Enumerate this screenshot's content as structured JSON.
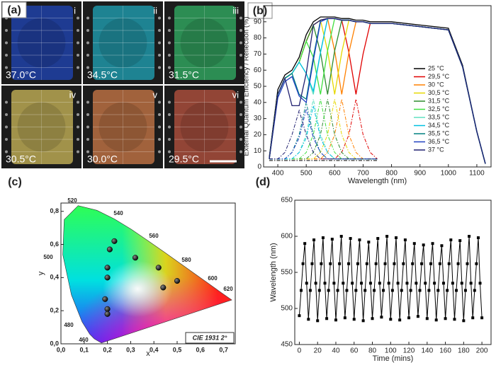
{
  "panel_a": {
    "label": "(a)",
    "photos": [
      {
        "numeral": "i",
        "temperature": "37.0°C",
        "color": "#1f3fa0"
      },
      {
        "numeral": "ii",
        "temperature": "34.5°C",
        "color": "#1f8fa0"
      },
      {
        "numeral": "iii",
        "temperature": "31.5°C",
        "color": "#2f9a5a"
      },
      {
        "numeral": "iv",
        "temperature": "30.5°C",
        "color": "#b0a050"
      },
      {
        "numeral": "v",
        "temperature": "30.0°C",
        "color": "#b06a40"
      },
      {
        "numeral": "vi",
        "temperature": "29.5°C",
        "color": "#a04a3a"
      }
    ]
  },
  "chart_data": [
    {
      "type": "line",
      "panel_label": "(b)",
      "x_label": "Wavelength (nm)",
      "y_label": "External Quantum Efficiency / Reflection (%)",
      "x": [
        370,
        400,
        425,
        450,
        475,
        500,
        525,
        550,
        575,
        600,
        625,
        650,
        675,
        700,
        725,
        750,
        800,
        900,
        1000,
        1050,
        1100,
        1130
      ],
      "xlim": [
        350,
        1150
      ],
      "xticks": [
        400,
        500,
        600,
        700,
        800,
        900,
        1000,
        1100
      ],
      "ylim": [
        0,
        100
      ],
      "yticks": [
        0,
        10,
        20,
        30,
        40,
        50,
        60,
        70,
        80,
        90,
        100
      ],
      "series": [
        {
          "name": "25 °C",
          "color": "#000000",
          "values": [
            6,
            48,
            57,
            60,
            68,
            82,
            90,
            93,
            93,
            93,
            92,
            92,
            91,
            91,
            90,
            90,
            90,
            88,
            86,
            63,
            22,
            2
          ],
          "reflection": [
            4,
            4,
            4,
            4,
            4,
            4,
            4,
            4,
            4,
            4,
            4,
            4,
            4,
            4,
            4,
            4,
            null,
            null,
            null,
            null,
            null,
            null
          ]
        },
        {
          "name": "29,5 °C",
          "color": "#e00000",
          "values": [
            5,
            45,
            55,
            58,
            65,
            78,
            88,
            91,
            92,
            92,
            91,
            71,
            45,
            70,
            89,
            89,
            89,
            87,
            85,
            62,
            22,
            2
          ],
          "reflection": [
            5,
            5,
            5,
            5,
            5,
            5,
            5,
            5,
            5,
            5,
            9,
            20,
            42,
            20,
            9,
            5,
            null,
            null,
            null,
            null,
            null,
            null
          ]
        },
        {
          "name": "30 °C",
          "color": "#ff8000",
          "values": [
            5,
            45,
            55,
            58,
            65,
            78,
            88,
            91,
            92,
            72,
            45,
            71,
            90,
            90,
            89,
            89,
            89,
            87,
            85,
            62,
            22,
            2
          ],
          "reflection": [
            5,
            5,
            5,
            5,
            5,
            5,
            5,
            5,
            9,
            20,
            42,
            20,
            9,
            5,
            5,
            5,
            null,
            null,
            null,
            null,
            null,
            null
          ]
        },
        {
          "name": "30,5 °C",
          "color": "#e6d800",
          "values": [
            5,
            45,
            55,
            58,
            65,
            78,
            88,
            91,
            72,
            45,
            71,
            91,
            90,
            90,
            89,
            89,
            89,
            87,
            85,
            62,
            22,
            2
          ],
          "reflection": [
            5,
            5,
            5,
            5,
            5,
            5,
            5,
            9,
            20,
            42,
            20,
            9,
            5,
            5,
            5,
            5,
            null,
            null,
            null,
            null,
            null,
            null
          ]
        },
        {
          "name": "31,5 °C",
          "color": "#2e8b2e",
          "values": [
            5,
            45,
            55,
            58,
            65,
            78,
            88,
            71,
            45,
            72,
            91,
            91,
            90,
            90,
            89,
            89,
            89,
            87,
            85,
            62,
            22,
            2
          ],
          "reflection": [
            5,
            5,
            5,
            5,
            5,
            5,
            9,
            20,
            42,
            20,
            9,
            5,
            5,
            5,
            5,
            5,
            null,
            null,
            null,
            null,
            null,
            null
          ]
        },
        {
          "name": "32,5 °C",
          "color": "#40e040",
          "values": [
            5,
            45,
            55,
            58,
            65,
            78,
            68,
            45,
            72,
            92,
            91,
            91,
            90,
            90,
            89,
            89,
            89,
            87,
            85,
            62,
            22,
            2
          ],
          "reflection": [
            5,
            5,
            5,
            5,
            5,
            9,
            20,
            42,
            20,
            9,
            5,
            5,
            5,
            5,
            5,
            5,
            null,
            null,
            null,
            null,
            null,
            null
          ]
        },
        {
          "name": "33,5 °C",
          "color": "#60e0c0",
          "values": [
            5,
            45,
            55,
            58,
            65,
            58,
            45,
            71,
            92,
            92,
            91,
            91,
            90,
            90,
            89,
            89,
            89,
            87,
            85,
            62,
            22,
            2
          ],
          "reflection": [
            5,
            5,
            5,
            5,
            9,
            20,
            42,
            20,
            9,
            5,
            5,
            5,
            5,
            5,
            5,
            5,
            null,
            null,
            null,
            null,
            null,
            null
          ]
        },
        {
          "name": "34,5 °C",
          "color": "#00c0e0",
          "values": [
            5,
            45,
            55,
            58,
            65,
            58,
            47,
            71,
            92,
            92,
            91,
            91,
            90,
            90,
            89,
            89,
            89,
            87,
            85,
            62,
            22,
            2
          ],
          "reflection": [
            5,
            5,
            5,
            5,
            9,
            18,
            38,
            18,
            9,
            5,
            5,
            5,
            5,
            5,
            5,
            5,
            null,
            null,
            null,
            null,
            null,
            null
          ]
        },
        {
          "name": "35,5 °C",
          "color": "#008080",
          "values": [
            5,
            45,
            55,
            58,
            45,
            42,
            68,
            91,
            92,
            92,
            91,
            91,
            90,
            90,
            89,
            89,
            89,
            87,
            85,
            62,
            22,
            2
          ],
          "reflection": [
            5,
            5,
            5,
            9,
            20,
            40,
            20,
            9,
            5,
            5,
            5,
            5,
            5,
            5,
            5,
            5,
            null,
            null,
            null,
            null,
            null,
            null
          ]
        },
        {
          "name": "36,5 °C",
          "color": "#2040c0",
          "values": [
            5,
            43,
            53,
            56,
            44,
            40,
            66,
            90,
            92,
            92,
            91,
            91,
            90,
            90,
            89,
            89,
            89,
            87,
            85,
            62,
            22,
            2
          ],
          "reflection": [
            5,
            5,
            5,
            9,
            18,
            36,
            18,
            9,
            5,
            5,
            5,
            5,
            5,
            5,
            5,
            5,
            null,
            null,
            null,
            null,
            null,
            null
          ]
        },
        {
          "name": "37 °C",
          "color": "#202070",
          "values": [
            5,
            45,
            55,
            38,
            38,
            58,
            88,
            91,
            92,
            92,
            91,
            91,
            90,
            90,
            89,
            89,
            89,
            87,
            85,
            62,
            22,
            2
          ],
          "reflection": [
            5,
            5,
            9,
            20,
            35,
            20,
            9,
            5,
            5,
            5,
            5,
            5,
            5,
            5,
            5,
            5,
            null,
            null,
            null,
            null,
            null,
            null
          ]
        }
      ]
    },
    {
      "type": "scatter",
      "panel_label": "(c)",
      "x_label": "x",
      "y_label": "y",
      "annotation": "CIE 1931 2°",
      "locus_labels": [
        "460",
        "480",
        "500",
        "520",
        "540",
        "560",
        "580",
        "600",
        "620"
      ],
      "x": [
        0.23,
        0.21,
        0.2,
        0.2,
        0.32,
        0.42,
        0.5,
        0.44,
        0.19,
        0.2,
        0.2
      ],
      "values": [
        0.62,
        0.57,
        0.46,
        0.4,
        0.52,
        0.46,
        0.38,
        0.34,
        0.27,
        0.21,
        0.18
      ],
      "color": "#000000",
      "xlim": [
        0,
        0.75
      ],
      "xticks": [
        {
          "value": 0,
          "label": "0,0"
        },
        {
          "value": 0.1,
          "label": "0,1"
        },
        {
          "value": 0.2,
          "label": "0,2"
        },
        {
          "value": 0.3,
          "label": "0,3"
        },
        {
          "value": 0.4,
          "label": "0,4"
        },
        {
          "value": 0.5,
          "label": "0,5"
        },
        {
          "value": 0.6,
          "label": "0,6"
        },
        {
          "value": 0.7,
          "label": "0,7"
        }
      ],
      "ylim": [
        0,
        0.85
      ],
      "yticks": [
        {
          "value": 0,
          "label": "0,0"
        },
        {
          "value": 0.2,
          "label": "0,2"
        },
        {
          "value": 0.4,
          "label": "0,4"
        },
        {
          "value": 0.6,
          "label": "0,6"
        },
        {
          "value": 0.8,
          "label": "0,8"
        }
      ]
    },
    {
      "type": "line",
      "panel_label": "(d)",
      "x_label": "Time (mins)",
      "y_label": "Wavelength (nm)",
      "color": "#000000",
      "marker": "square",
      "x": [
        0,
        2,
        4,
        6,
        8,
        10,
        12,
        14,
        16,
        18,
        20,
        22,
        24,
        26,
        28,
        30,
        32,
        34,
        36,
        38,
        40,
        42,
        44,
        46,
        48,
        50,
        52,
        54,
        56,
        58,
        60,
        62,
        64,
        66,
        68,
        70,
        72,
        74,
        76,
        78,
        80,
        82,
        84,
        86,
        88,
        90,
        92,
        94,
        96,
        98,
        100,
        102,
        104,
        106,
        108,
        110,
        112,
        114,
        116,
        118,
        120,
        122,
        124,
        126,
        128,
        130,
        132,
        134,
        136,
        138,
        140,
        142,
        144,
        146,
        148,
        150,
        152,
        154,
        156,
        158,
        160,
        162,
        164,
        166,
        168,
        170,
        172,
        174,
        176,
        178,
        180,
        182,
        184,
        186,
        188,
        190,
        192,
        194,
        196,
        198,
        200
      ],
      "values": [
        490,
        525,
        562,
        590,
        535,
        485,
        525,
        562,
        595,
        535,
        483,
        525,
        562,
        598,
        535,
        486,
        525,
        562,
        596,
        535,
        484,
        525,
        562,
        600,
        535,
        487,
        525,
        562,
        597,
        535,
        485,
        525,
        562,
        595,
        535,
        483,
        525,
        562,
        592,
        535,
        486,
        525,
        562,
        597,
        535,
        488,
        525,
        562,
        600,
        535,
        485,
        525,
        562,
        598,
        535,
        484,
        525,
        562,
        595,
        535,
        487,
        525,
        562,
        590,
        535,
        489,
        525,
        562,
        588,
        535,
        486,
        525,
        562,
        590,
        535,
        484,
        525,
        562,
        587,
        535,
        486,
        525,
        562,
        595,
        535,
        485,
        525,
        562,
        594,
        535,
        483,
        525,
        562,
        600,
        535,
        487,
        525,
        562,
        598,
        535,
        487
      ],
      "xlim": [
        -5,
        210
      ],
      "xticks": [
        0,
        20,
        40,
        60,
        80,
        100,
        120,
        140,
        160,
        180,
        200
      ],
      "ylim": [
        450,
        650
      ],
      "yticks": [
        450,
        500,
        550,
        600,
        650
      ]
    }
  ]
}
